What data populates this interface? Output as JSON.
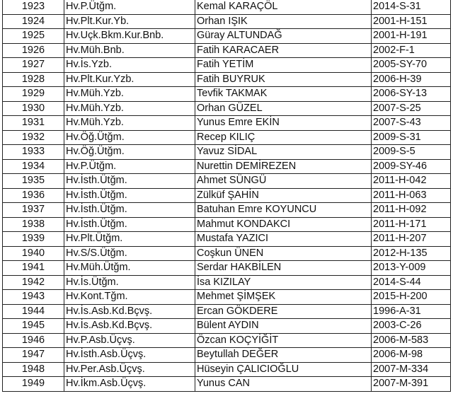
{
  "rows": [
    [
      "1923",
      "Hv.P.Ütğm.",
      "Kemal KARAÇÖL",
      "2014-S-31"
    ],
    [
      "1924",
      "Hv.Plt.Kur.Yb.",
      "Orhan IŞIK",
      "2001-H-151"
    ],
    [
      "1925",
      "Hv.Uçk.Bkm.Kur.Bnb.",
      "Güray ALTUNDAĞ",
      "2001-H-191"
    ],
    [
      "1926",
      "Hv.Müh.Bnb.",
      "Fatih KARACAER",
      "2002-F-1"
    ],
    [
      "1927",
      "Hv.İs.Yzb.",
      "Fatih YETİM",
      "2005-SY-70"
    ],
    [
      "1928",
      "Hv.Plt.Kur.Yzb.",
      "Fatih BUYRUK",
      "2006-H-39"
    ],
    [
      "1929",
      "Hv.Müh.Yzb.",
      "Tevfik TAKMAK",
      "2006-SY-13"
    ],
    [
      "1930",
      "Hv.Müh.Yzb.",
      "Orhan GÜZEL",
      "2007-S-25"
    ],
    [
      "1931",
      "Hv.Müh.Yzb.",
      "Yunus Emre EKİN",
      "2007-S-43"
    ],
    [
      "1932",
      "Hv.Öğ.Ütğm.",
      "Recep KILIÇ",
      "2009-S-31"
    ],
    [
      "1933",
      "Hv.Öğ.Ütğm.",
      "Yavuz SİDAL",
      "2009-S-5"
    ],
    [
      "1934",
      "Hv.P.Ütğm.",
      "Nurettin DEMİREZEN",
      "2009-SY-46"
    ],
    [
      "1935",
      "Hv.İsth.Ütğm.",
      "Ahmet SÜNGÜ",
      "2011-H-042"
    ],
    [
      "1936",
      "Hv.İsth.Ütğm.",
      "Zülküf ŞAHİN",
      "2011-H-063"
    ],
    [
      "1937",
      "Hv.İsth.Ütğm.",
      "Batuhan Emre KOYUNCU",
      "2011-H-092"
    ],
    [
      "1938",
      "Hv.İsth.Ütğm.",
      "Mahmut KONDAKCI",
      "2011-H-171"
    ],
    [
      "1939",
      "Hv.Plt.Ütğm.",
      "Mustafa YAZICI",
      "2011-H-207"
    ],
    [
      "1940",
      "Hv.S/S.Ütğm.",
      "Coşkun ÜNEN",
      "2012-H-135"
    ],
    [
      "1941",
      "Hv.Müh.Ütğm.",
      "Serdar HAKBİLEN",
      "2013-Y-009"
    ],
    [
      "1942",
      "Hv.İs.Ütğm.",
      "İsa KIZILAY",
      "2014-S-44"
    ],
    [
      "1943",
      "Hv.Kont.Tğm.",
      "Mehmet ŞİMŞEK",
      "2015-H-200"
    ],
    [
      "1944",
      "Hv.İs.Asb.Kd.Bçvş.",
      "Ercan GÖKDERE",
      "1996-A-31"
    ],
    [
      "1945",
      "Hv.İs.Asb.Kd.Bçvş.",
      "Bülent AYDIN",
      "2003-C-26"
    ],
    [
      "1946",
      "Hv.P.Asb.Üçvş.",
      "Özcan KOÇYİĞİT",
      "2006-M-583"
    ],
    [
      "1947",
      "Hv.İsth.Asb.Üçvş.",
      "Beytullah DEĞER",
      "2006-M-98"
    ],
    [
      "1948",
      "Hv.Per.Asb.Üçvş.",
      "Hüseyin ÇALICIOĞLU",
      "2007-M-334"
    ],
    [
      "1949",
      "Hv.İkm.Asb.Üçvş.",
      "Yunus CAN",
      "2007-M-391"
    ]
  ]
}
